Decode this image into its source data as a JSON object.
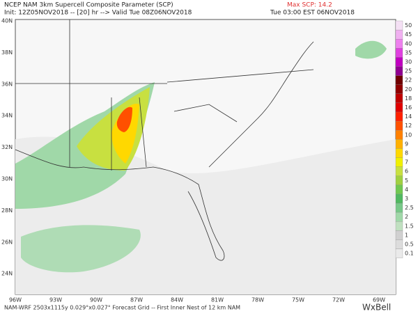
{
  "header": {
    "title": "NCEP NAM 3km Supercell Composite Parameter (SCP)",
    "init": "Init: 12Z05NOV2018 -- [20] hr --> Valid Tue 08Z06NOV2018",
    "max": "Max SCP: 14.2",
    "local_time": "Tue 03:00 EST 06NOV2018"
  },
  "latitude_labels": [
    "40N",
    "38N",
    "36N",
    "34N",
    "32N",
    "30N",
    "28N",
    "26N",
    "24N"
  ],
  "longitude_labels": [
    "96W",
    "93W",
    "90W",
    "87W",
    "84W",
    "81W",
    "78W",
    "75W",
    "72W",
    "69W"
  ],
  "colorbar": {
    "labels": [
      "50",
      "45",
      "40",
      "35",
      "30",
      "25",
      "22",
      "20",
      "18",
      "16",
      "14",
      "12",
      "10",
      "9",
      "8",
      "7",
      "6",
      "5",
      "4",
      "3",
      "2.5",
      "2",
      "1.5",
      "1",
      "0.5",
      "0.1"
    ],
    "colors": [
      "#f4e0f4",
      "#f0b0f0",
      "#ee80ee",
      "#e040e0",
      "#c000c0",
      "#900090",
      "#700000",
      "#900000",
      "#c00000",
      "#e00000",
      "#ff2000",
      "#ff5000",
      "#ff8000",
      "#ffb000",
      "#ffd800",
      "#f0f000",
      "#c8e040",
      "#a0d040",
      "#70c850",
      "#50b860",
      "#78c888",
      "#a0d8a8",
      "#c0e0c0",
      "#d0d0d0",
      "#dcdcdc",
      "#eaeaea"
    ]
  },
  "footer": {
    "grid": "NAM-WRF 2503x1115y 0.029°x0.027° Forecast Grid -- First Inner Nest of 12 km NAM",
    "logo": "WxBell"
  }
}
